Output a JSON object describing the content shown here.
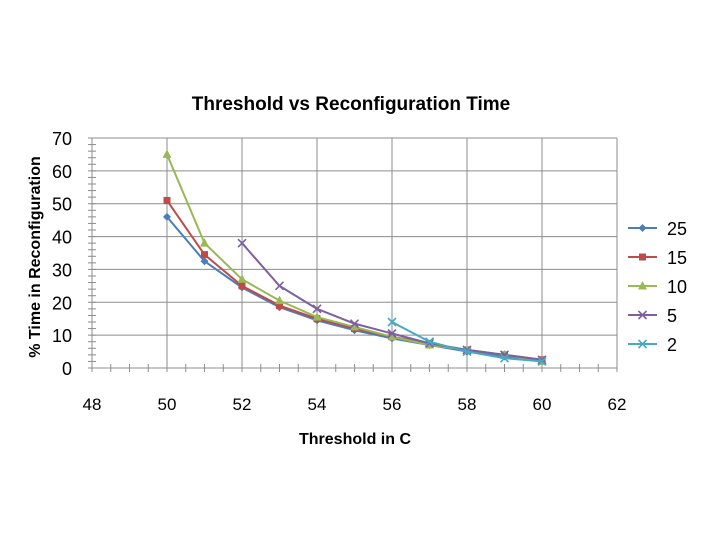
{
  "chart_data": {
    "type": "line",
    "title": "Threshold vs Reconfiguration Time",
    "xlabel": "Threshold in C",
    "ylabel": "% Time in Reconfiguration",
    "xlim": [
      48,
      62
    ],
    "ylim": [
      0,
      70
    ],
    "x_ticks": [
      48,
      50,
      52,
      54,
      56,
      58,
      60,
      62
    ],
    "y_ticks": [
      0,
      10,
      20,
      30,
      40,
      50,
      60,
      70
    ],
    "x_ticks_text": [
      "48",
      "50",
      "52",
      "54",
      "56",
      "58",
      "60",
      "62"
    ],
    "y_ticks_text": [
      "0",
      "10",
      "20",
      "30",
      "40",
      "50",
      "60",
      "70"
    ],
    "grid": true,
    "legend_position": "right",
    "series": [
      {
        "name": "25",
        "color": "#4a7ebb",
        "marker": "diamond",
        "points": [
          [
            50,
            46
          ],
          [
            51,
            32.5
          ],
          [
            52,
            24.5
          ],
          [
            53,
            18.5
          ],
          [
            54,
            14.5
          ],
          [
            55,
            11.5
          ],
          [
            56,
            9
          ],
          [
            57,
            7
          ],
          [
            58,
            5
          ],
          [
            59,
            3.5
          ],
          [
            60,
            2
          ]
        ]
      },
      {
        "name": "15",
        "color": "#be4b48",
        "marker": "square",
        "points": [
          [
            50,
            51
          ],
          [
            51,
            34.5
          ],
          [
            52,
            25
          ],
          [
            53,
            19
          ],
          [
            54,
            15
          ],
          [
            55,
            12
          ],
          [
            56,
            9.5
          ],
          [
            57,
            7.5
          ],
          [
            58,
            5.5
          ],
          [
            59,
            4
          ],
          [
            60,
            2.5
          ]
        ]
      },
      {
        "name": "10",
        "color": "#98b954",
        "marker": "triangle",
        "points": [
          [
            50,
            65
          ],
          [
            51,
            38
          ],
          [
            52,
            27
          ],
          [
            53,
            20.5
          ],
          [
            54,
            15.5
          ],
          [
            55,
            12.5
          ],
          [
            56,
            9.5
          ],
          [
            57,
            7
          ],
          [
            58,
            5.5
          ],
          [
            59,
            4
          ],
          [
            60,
            2
          ]
        ]
      },
      {
        "name": "5",
        "color": "#7d60a0",
        "marker": "x",
        "points": [
          [
            52,
            38
          ],
          [
            53,
            25
          ],
          [
            54,
            18
          ],
          [
            55,
            13.5
          ],
          [
            56,
            10.5
          ],
          [
            57,
            7.5
          ],
          [
            58,
            5.5
          ],
          [
            59,
            4
          ],
          [
            60,
            2.5
          ]
        ]
      },
      {
        "name": "2",
        "color": "#46aac5",
        "marker": "x",
        "points": [
          [
            56,
            14
          ],
          [
            57,
            8
          ],
          [
            58,
            5
          ],
          [
            59,
            3
          ],
          [
            60,
            2
          ]
        ]
      }
    ]
  }
}
